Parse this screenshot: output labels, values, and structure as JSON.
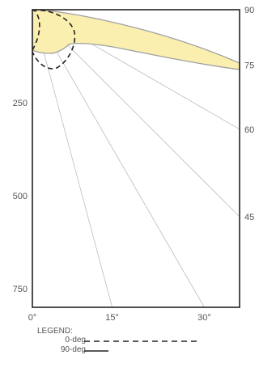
{
  "chart_data": {
    "type": "polar-isocandela",
    "y_axis_ticks": [
      {
        "value": 250,
        "label": "250"
      },
      {
        "value": 500,
        "label": "500"
      },
      {
        "value": 750,
        "label": "750"
      }
    ],
    "y_range": [
      0,
      800
    ],
    "x_axis_ticks": [
      {
        "angle": 0,
        "label": "0°"
      },
      {
        "angle": 15,
        "label": "15°"
      },
      {
        "angle": 30,
        "label": "30°"
      }
    ],
    "right_angle_labels": [
      {
        "angle": 90,
        "label": "90"
      },
      {
        "angle": 75,
        "label": "75"
      },
      {
        "angle": 60,
        "label": "60"
      },
      {
        "angle": 45,
        "label": "45"
      }
    ],
    "radial_line_angles": [
      15,
      30,
      45,
      60,
      75
    ],
    "fill_color": "#fbefb0",
    "outline_color": "#a0a0a0",
    "series": [
      {
        "name": "0-deg",
        "style": "dashed"
      },
      {
        "name": "90-deg",
        "style": "solid"
      }
    ]
  },
  "legend": {
    "title": "LEGEND:",
    "items": [
      {
        "label": "0-deg",
        "style": "dashed"
      },
      {
        "label": "90-deg",
        "style": "solid"
      }
    ]
  }
}
